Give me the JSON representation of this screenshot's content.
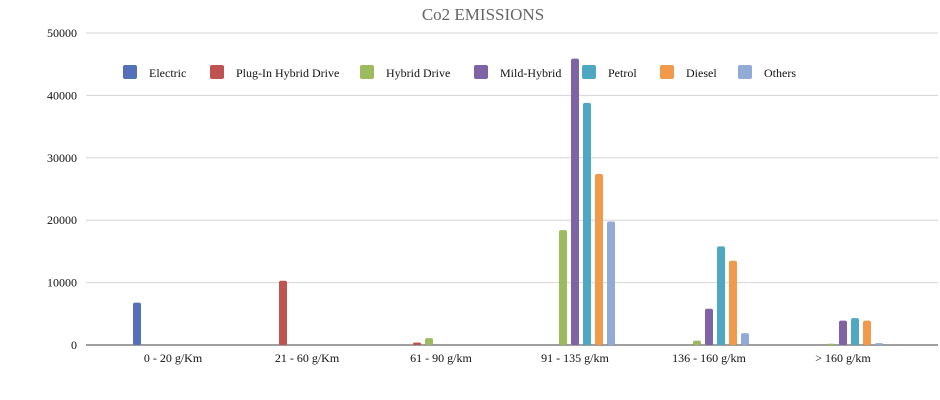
{
  "chart_data": {
    "type": "bar",
    "title": "Co2 EMISSIONS",
    "xlabel": "",
    "ylabel": "",
    "ylim": [
      0,
      50000
    ],
    "yticks": [
      0,
      10000,
      20000,
      30000,
      40000,
      50000
    ],
    "grid": true,
    "legend_position": "top",
    "categories": [
      "0 - 20 g/Km",
      "21 - 60 g/Km",
      "61 - 90 g/km",
      "91 - 135 g/km",
      "136 - 160 g/km",
      "> 160 g/km"
    ],
    "series": [
      {
        "name": "Electric",
        "color": "#5470b8",
        "values": [
          6800,
          0,
          0,
          0,
          0,
          0
        ]
      },
      {
        "name": "Plug-In Hybrid Drive",
        "color": "#bf5350",
        "values": [
          0,
          10300,
          400,
          0,
          0,
          0
        ]
      },
      {
        "name": "Hybrid Drive",
        "color": "#9cbb5e",
        "values": [
          0,
          0,
          1100,
          18400,
          700,
          200
        ]
      },
      {
        "name": "Mild-Hybrid",
        "color": "#7e64a4",
        "values": [
          0,
          0,
          0,
          45900,
          5800,
          3900
        ]
      },
      {
        "name": "Petrol",
        "color": "#4ea8c2",
        "values": [
          0,
          0,
          0,
          38800,
          15800,
          4300
        ]
      },
      {
        "name": "Diesel",
        "color": "#f29a4b",
        "values": [
          0,
          0,
          0,
          27400,
          13500,
          3900
        ]
      },
      {
        "name": "Others",
        "color": "#92abd6",
        "values": [
          0,
          0,
          0,
          19800,
          1900,
          300
        ]
      }
    ]
  }
}
